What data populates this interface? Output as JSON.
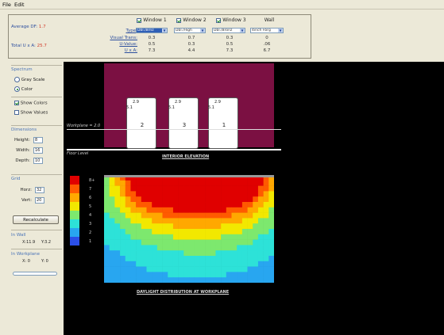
{
  "menu": {
    "file": "File",
    "edit": "Edit"
  },
  "summary": {
    "avg_df_label": "Average DF:",
    "avg_df_value": "1.7",
    "total_ua_label": "Total U x A:",
    "total_ua_value": "25.7"
  },
  "table": {
    "row_labels": {
      "type": "Type:",
      "vt": "Visual Trans:",
      "u": "U-Value:",
      "ua": "U x A:"
    },
    "columns": [
      {
        "header": "Window 1",
        "checked": true,
        "type": "Dbl./Brnz",
        "selected": true,
        "vt": "0.3",
        "u": "0.5",
        "ua": "7.3"
      },
      {
        "header": "Window 2",
        "checked": true,
        "type": "Dbl./High",
        "selected": false,
        "vt": "0.7",
        "u": "0.3",
        "ua": "4.4"
      },
      {
        "header": "Window 3",
        "checked": true,
        "type": "Dbl./Bronz",
        "selected": false,
        "vt": "0.3",
        "u": "0.5",
        "ua": "7.3"
      },
      {
        "header": "Wall",
        "checked": false,
        "type": "4inch Fbrg",
        "selected": false,
        "vt": "0",
        "u": ".06",
        "ua": "6.7"
      }
    ]
  },
  "sidebar": {
    "spectrum": {
      "title": "Spectrum",
      "gray": "Gray Scale",
      "color": "Color",
      "selected": "color"
    },
    "show_colors": "Show Colors",
    "show_values": "Show Values",
    "dimensions": {
      "title": "Dimensions",
      "height_label": "Height:",
      "height": "8",
      "width_label": "Width:",
      "width": "16",
      "depth_label": "Depth:",
      "depth": "10"
    },
    "grid": {
      "title": "Grid",
      "horz_label": "Horz:",
      "horz": "32",
      "vert_label": "Vert:",
      "vert": "20"
    },
    "recalculate": "Recalculate",
    "in_wall": {
      "title": "In Wall",
      "x": "X:11.9",
      "y": "Y:3.2"
    },
    "in_workplane": {
      "title": "In Workplane",
      "x": "X: 0",
      "y": "Y: 0"
    }
  },
  "elevation": {
    "windows": [
      {
        "v1": "2.9",
        "v2": "5.1",
        "num": "2"
      },
      {
        "v1": "2.9",
        "v2": "5.1",
        "num": "3"
      },
      {
        "v1": "2.9",
        "v2": "5.1",
        "num": "1"
      }
    ],
    "workplane_label": "Workplane = 2.0",
    "floor_label": "Floor Level",
    "caption": "INTERIOR ELEVATION"
  },
  "distribution": {
    "caption": "DAYLIGHT DISTRIBUTION AT WORKPLANE",
    "legend": [
      "8+",
      "7",
      "6",
      "5",
      "4",
      "3",
      "2",
      "1"
    ],
    "legend_colors": [
      "#e00000",
      "#ff5a00",
      "#ffa800",
      "#f2e800",
      "#7de86e",
      "#2de2d8",
      "#28a6f0",
      "#2b4fe8"
    ]
  }
}
